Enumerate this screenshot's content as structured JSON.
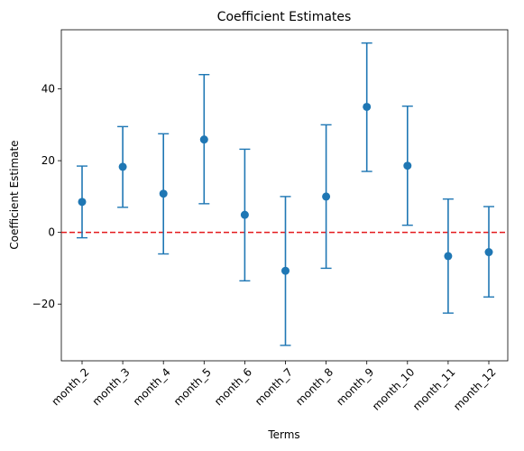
{
  "chart_data": {
    "type": "scatter",
    "title": "Coefficient Estimates",
    "xlabel": "Terms",
    "ylabel": "Coefficient Estimate",
    "categories": [
      "month_2",
      "month_3",
      "month_4",
      "month_5",
      "month_6",
      "month_7",
      "month_8",
      "month_9",
      "month_10",
      "month_11",
      "month_12"
    ],
    "series": [
      {
        "values": [
          8.5,
          18.3,
          10.8,
          25.9,
          4.9,
          -10.7,
          10.0,
          35.0,
          18.6,
          -6.6,
          -5.5
        ],
        "lower": [
          -1.5,
          7.0,
          -6.0,
          8.0,
          -13.5,
          -31.5,
          -10.0,
          17.0,
          2.0,
          -22.5,
          -18.0
        ],
        "upper": [
          18.5,
          29.5,
          27.5,
          44.0,
          23.2,
          10.0,
          30.0,
          52.8,
          35.2,
          9.3,
          7.2
        ]
      }
    ],
    "reference_line": {
      "y": 0,
      "style": "dashed",
      "color": "#e41a1c"
    },
    "ylim": [
      -35.8,
      56.5
    ],
    "yticks": [
      -20,
      0,
      20,
      40
    ],
    "ytick_labels": [
      "−20",
      "0",
      "20",
      "40"
    ],
    "grid": false,
    "marker_color": "#1f77b4"
  }
}
